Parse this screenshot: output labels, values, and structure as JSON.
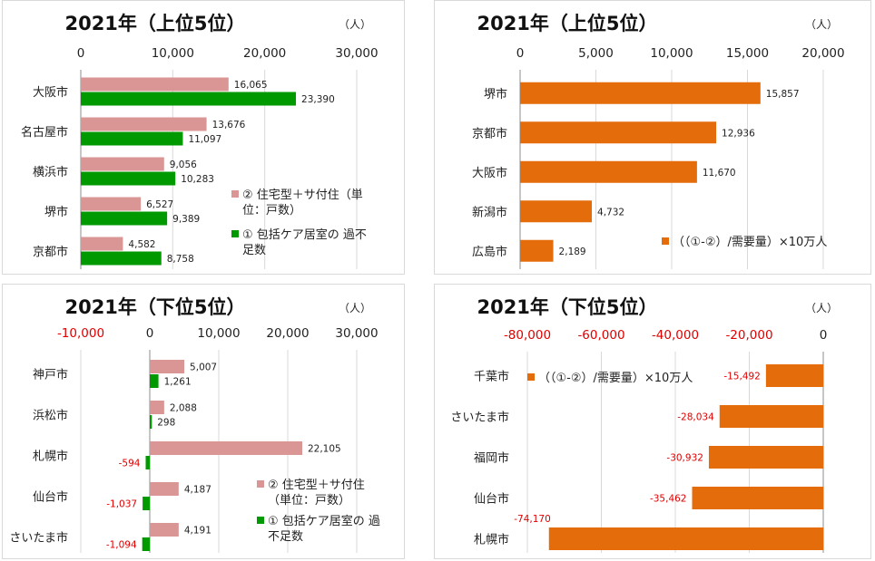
{
  "colors": {
    "housing": "#d99694",
    "care": "#009900",
    "ratio": "#e46c0a",
    "negative": "#e00000",
    "grid": "#d9d9d9",
    "text": "#222222"
  },
  "chart_data": [
    {
      "type": "bar",
      "orientation": "horizontal",
      "title": "2021年（上位5位）",
      "unit": "（人）",
      "categories": [
        "大阪市",
        "名古屋市",
        "横浜市",
        "堺市",
        "京都市"
      ],
      "series": [
        {
          "name": "② 住宅型＋サ付住（単位：戸数）",
          "legend_lines": [
            "② 住宅型＋サ付住（単",
            "位：戸数）"
          ],
          "values": [
            16065,
            13676,
            9056,
            6527,
            4582
          ],
          "labels": [
            "16,065",
            "13,676",
            "9,056",
            "6,527",
            "4,582"
          ]
        },
        {
          "name": "① 包括ケア居室の過不足数",
          "legend_lines": [
            "① 包括ケア居室の 過不",
            "足数"
          ],
          "values": [
            23390,
            11097,
            10283,
            9389,
            8758
          ],
          "labels": [
            "23,390",
            "11,097",
            "10,283",
            "9,389",
            "8,758"
          ]
        }
      ],
      "xlim": [
        0,
        30000
      ],
      "ticks": [
        0,
        10000,
        20000,
        30000
      ],
      "tick_labels": [
        "0",
        "10,000",
        "20,000",
        "30,000"
      ]
    },
    {
      "type": "bar",
      "orientation": "horizontal",
      "title": "2021年（上位5位）",
      "unit": "（人）",
      "categories": [
        "堺市",
        "京都市",
        "大阪市",
        "新潟市",
        "広島市"
      ],
      "series": [
        {
          "name": "（（①-②）/需要量）×10万人",
          "legend_lines": [
            "（（①-②）/需要量）×10万人"
          ],
          "values": [
            15857,
            12936,
            11670,
            4732,
            2189
          ],
          "labels": [
            "15,857",
            "12,936",
            "11,670",
            "4,732",
            "2,189"
          ]
        }
      ],
      "xlim": [
        0,
        20000
      ],
      "ticks": [
        0,
        5000,
        10000,
        15000,
        20000
      ],
      "tick_labels": [
        "0",
        "5,000",
        "10,000",
        "15,000",
        "20,000"
      ]
    },
    {
      "type": "bar",
      "orientation": "horizontal",
      "title": "2021年（下位5位）",
      "unit": "（人）",
      "categories": [
        "神戸市",
        "浜松市",
        "札幌市",
        "仙台市",
        "さいたま市"
      ],
      "series": [
        {
          "name": "② 住宅型＋サ付住（単位：戸数）",
          "legend_lines": [
            "② 住宅型＋サ付住",
            "（単位：戸数）"
          ],
          "values": [
            5007,
            2088,
            22105,
            4187,
            4191
          ],
          "labels": [
            "5,007",
            "2,088",
            "22,105",
            "4,187",
            "4,191"
          ]
        },
        {
          "name": "① 包括ケア居室の過不足数",
          "legend_lines": [
            "① 包括ケア居室の 過",
            "不足数"
          ],
          "values": [
            1261,
            298,
            -594,
            -1037,
            -1094
          ],
          "labels": [
            "1,261",
            "298",
            "-594",
            "-1,037",
            "-1,094"
          ]
        }
      ],
      "xlim": [
        -10000,
        30000
      ],
      "ticks": [
        -10000,
        0,
        10000,
        20000,
        30000
      ],
      "tick_labels": [
        "-10,000",
        "0",
        "10,000",
        "20,000",
        "30,000"
      ]
    },
    {
      "type": "bar",
      "orientation": "horizontal",
      "title": "2021年（下位5位）",
      "unit": "（人）",
      "categories": [
        "千葉市",
        "さいたま市",
        "福岡市",
        "仙台市",
        "札幌市"
      ],
      "series": [
        {
          "name": "（（①-②）/需要量）×10万人",
          "legend_lines": [
            "（（①-②）/需要量）×10万人"
          ],
          "values": [
            -15492,
            -28034,
            -30932,
            -35462,
            -74170
          ],
          "labels": [
            "-15,492",
            "-28,034",
            "-30,932",
            "-35,462",
            "-74,170"
          ]
        }
      ],
      "xlim": [
        -80000,
        0
      ],
      "ticks": [
        -80000,
        -60000,
        -40000,
        -20000,
        0
      ],
      "tick_labels": [
        "-80,000",
        "-60,000",
        "-40,000",
        "-20,000",
        "0"
      ]
    }
  ]
}
